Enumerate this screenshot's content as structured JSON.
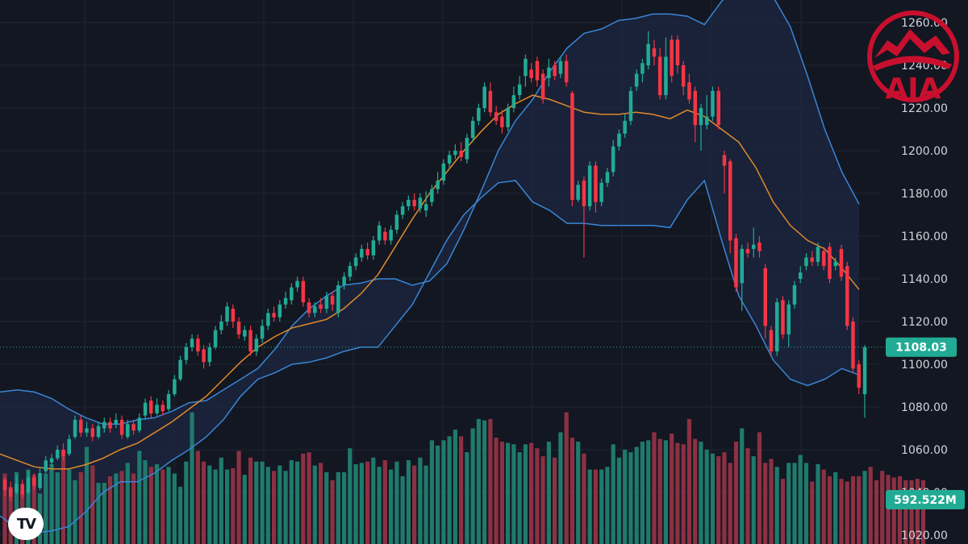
{
  "colors": {
    "background": "#131722",
    "grid": "#1f2433",
    "up": "#22ab94",
    "down": "#f23645",
    "up_volume": "#1f7a6c",
    "down_volume": "#8c3142",
    "band_line": "#3a86d6",
    "band_fill": "#1c2740",
    "ma_line": "#e08a2c",
    "last_price_tag": "#22ab94",
    "logo_red": "#c8102e"
  },
  "logo": {
    "text": "AIA",
    "icon": "aia-mountain-logo-icon"
  },
  "watermark": {
    "icon": "tradingview-logo-icon",
    "text": "TV"
  },
  "price_axis": {
    "ticks": [
      "1260.00",
      "1240.00",
      "1220.00",
      "1200.00",
      "1180.00",
      "1160.00",
      "1140.00",
      "1120.00",
      "1100.00",
      "1080.00",
      "1060.00",
      "1040.00",
      "1020.00"
    ]
  },
  "last_price": {
    "value": 1108.03,
    "label": "1108.03"
  },
  "volume_last": {
    "label": "592.522M"
  },
  "chart_data": {
    "type": "candlestick",
    "ylim": [
      1020,
      1265
    ],
    "grid": true,
    "candles": [
      [
        1046,
        1041,
        1047,
        1038
      ],
      [
        1042,
        1038,
        1045,
        1036
      ],
      [
        1040,
        1044,
        1048,
        1039
      ],
      [
        1044,
        1039,
        1046,
        1037
      ],
      [
        1040,
        1047,
        1050,
        1039
      ],
      [
        1047,
        1043,
        1049,
        1041
      ],
      [
        1042,
        1049,
        1052,
        1041
      ],
      [
        1050,
        1055,
        1057,
        1049
      ],
      [
        1054,
        1056,
        1058,
        1052
      ],
      [
        1056,
        1060,
        1062,
        1055
      ],
      [
        1060,
        1057,
        1063,
        1055
      ],
      [
        1058,
        1065,
        1067,
        1057
      ],
      [
        1066,
        1074,
        1076,
        1065
      ],
      [
        1074,
        1068,
        1076,
        1066
      ],
      [
        1068,
        1070,
        1073,
        1066
      ],
      [
        1070,
        1066,
        1072,
        1064
      ],
      [
        1066,
        1071,
        1073,
        1065
      ],
      [
        1070,
        1073,
        1075,
        1068
      ],
      [
        1073,
        1070,
        1075,
        1068
      ],
      [
        1072,
        1074,
        1077,
        1070
      ],
      [
        1074,
        1067,
        1076,
        1065
      ],
      [
        1066,
        1072,
        1074,
        1065
      ],
      [
        1072,
        1069,
        1074,
        1067
      ],
      [
        1069,
        1075,
        1077,
        1068
      ],
      [
        1076,
        1082,
        1084,
        1074
      ],
      [
        1083,
        1077,
        1085,
        1075
      ],
      [
        1077,
        1081,
        1084,
        1076
      ],
      [
        1081,
        1078,
        1083,
        1076
      ],
      [
        1079,
        1086,
        1088,
        1078
      ],
      [
        1086,
        1093,
        1095,
        1085
      ],
      [
        1093,
        1102,
        1104,
        1092
      ],
      [
        1102,
        1108,
        1110,
        1100
      ],
      [
        1108,
        1112,
        1114,
        1106
      ],
      [
        1112,
        1106,
        1114,
        1104
      ],
      [
        1107,
        1101,
        1109,
        1098
      ],
      [
        1101,
        1108,
        1110,
        1099
      ],
      [
        1108,
        1116,
        1118,
        1107
      ],
      [
        1116,
        1120,
        1123,
        1114
      ],
      [
        1120,
        1127,
        1129,
        1118
      ],
      [
        1126,
        1120,
        1128,
        1117
      ],
      [
        1120,
        1114,
        1122,
        1112
      ],
      [
        1113,
        1116,
        1118,
        1111
      ],
      [
        1116,
        1106,
        1118,
        1104
      ],
      [
        1106,
        1112,
        1114,
        1104
      ],
      [
        1112,
        1118,
        1121,
        1110
      ],
      [
        1118,
        1124,
        1126,
        1116
      ],
      [
        1124,
        1122,
        1127,
        1120
      ],
      [
        1122,
        1128,
        1130,
        1120
      ],
      [
        1128,
        1131,
        1134,
        1126
      ],
      [
        1130,
        1136,
        1138,
        1128
      ],
      [
        1136,
        1139,
        1141,
        1134
      ],
      [
        1139,
        1129,
        1141,
        1127
      ],
      [
        1129,
        1124,
        1131,
        1122
      ],
      [
        1124,
        1127,
        1129,
        1122
      ],
      [
        1128,
        1126,
        1131,
        1124
      ],
      [
        1126,
        1132,
        1134,
        1124
      ],
      [
        1132,
        1128,
        1134,
        1125
      ],
      [
        1124,
        1137,
        1139,
        1122
      ],
      [
        1137,
        1141,
        1143,
        1135
      ],
      [
        1141,
        1146,
        1148,
        1139
      ],
      [
        1146,
        1150,
        1152,
        1144
      ],
      [
        1150,
        1154,
        1156,
        1148
      ],
      [
        1154,
        1151,
        1157,
        1149
      ],
      [
        1151,
        1158,
        1160,
        1149
      ],
      [
        1158,
        1165,
        1167,
        1156
      ],
      [
        1162,
        1158,
        1164,
        1156
      ],
      [
        1158,
        1163,
        1165,
        1156
      ],
      [
        1163,
        1170,
        1172,
        1161
      ],
      [
        1170,
        1174,
        1176,
        1168
      ],
      [
        1174,
        1177,
        1179,
        1172
      ],
      [
        1177,
        1174,
        1180,
        1172
      ],
      [
        1173,
        1178,
        1180,
        1171
      ],
      [
        1172,
        1175,
        1181,
        1169
      ],
      [
        1176,
        1182,
        1184,
        1174
      ],
      [
        1182,
        1186,
        1190,
        1180
      ],
      [
        1186,
        1194,
        1196,
        1184
      ],
      [
        1194,
        1198,
        1200,
        1192
      ],
      [
        1198,
        1200,
        1203,
        1196
      ],
      [
        1200,
        1197,
        1204,
        1195
      ],
      [
        1196,
        1206,
        1208,
        1194
      ],
      [
        1206,
        1214,
        1216,
        1204
      ],
      [
        1214,
        1220,
        1222,
        1212
      ],
      [
        1220,
        1230,
        1232,
        1218
      ],
      [
        1228,
        1218,
        1232,
        1216
      ],
      [
        1218,
        1214,
        1221,
        1212
      ],
      [
        1216,
        1211,
        1219,
        1208
      ],
      [
        1211,
        1220,
        1222,
        1209
      ],
      [
        1220,
        1226,
        1230,
        1218
      ],
      [
        1226,
        1231,
        1235,
        1224
      ],
      [
        1235,
        1243,
        1245,
        1230
      ],
      [
        1238,
        1234,
        1241,
        1232
      ],
      [
        1242,
        1233,
        1244,
        1230
      ],
      [
        1236,
        1224,
        1238,
        1222
      ],
      [
        1234,
        1239,
        1243,
        1230
      ],
      [
        1240,
        1235,
        1242,
        1233
      ],
      [
        1236,
        1242,
        1244,
        1234
      ],
      [
        1242,
        1232,
        1245,
        1230
      ],
      [
        1227,
        1177,
        1228,
        1174
      ],
      [
        1177,
        1184,
        1186,
        1176
      ],
      [
        1186,
        1174,
        1188,
        1150
      ],
      [
        1174,
        1193,
        1195,
        1172
      ],
      [
        1193,
        1176,
        1195,
        1171
      ],
      [
        1176,
        1185,
        1187,
        1174
      ],
      [
        1185,
        1190,
        1192,
        1183
      ],
      [
        1190,
        1202,
        1205,
        1188
      ],
      [
        1202,
        1208,
        1210,
        1200
      ],
      [
        1208,
        1214,
        1217,
        1206
      ],
      [
        1214,
        1228,
        1230,
        1212
      ],
      [
        1230,
        1236,
        1238,
        1228
      ],
      [
        1236,
        1241,
        1243,
        1232
      ],
      [
        1240,
        1250,
        1256,
        1238
      ],
      [
        1248,
        1244,
        1252,
        1240
      ],
      [
        1244,
        1226,
        1248,
        1224
      ],
      [
        1226,
        1244,
        1253,
        1224
      ],
      [
        1252,
        1235,
        1254,
        1232
      ],
      [
        1252,
        1240,
        1254,
        1236
      ],
      [
        1240,
        1230,
        1242,
        1226
      ],
      [
        1232,
        1224,
        1236,
        1222
      ],
      [
        1228,
        1212,
        1230,
        1204
      ],
      [
        1212,
        1220,
        1222,
        1200
      ],
      [
        1212,
        1216,
        1226,
        1210
      ],
      [
        1216,
        1228,
        1230,
        1214
      ],
      [
        1228,
        1212,
        1230,
        1210
      ],
      [
        1198,
        1193,
        1200,
        1180
      ],
      [
        1195,
        1158,
        1196,
        1152
      ],
      [
        1159,
        1136,
        1161,
        1134
      ],
      [
        1138,
        1154,
        1156,
        1125
      ],
      [
        1154,
        1152,
        1157,
        1150
      ],
      [
        1154,
        1156,
        1164,
        1150
      ],
      [
        1157,
        1153,
        1160,
        1150
      ],
      [
        1145,
        1118,
        1147,
        1112
      ],
      [
        1116,
        1106,
        1118,
        1104
      ],
      [
        1106,
        1129,
        1131,
        1104
      ],
      [
        1130,
        1114,
        1132,
        1112
      ],
      [
        1114,
        1128,
        1130,
        1108
      ],
      [
        1128,
        1137,
        1139,
        1126
      ],
      [
        1140,
        1143,
        1146,
        1138
      ],
      [
        1146,
        1150,
        1152,
        1144
      ],
      [
        1150,
        1148,
        1153,
        1146
      ],
      [
        1148,
        1155,
        1157,
        1146
      ],
      [
        1153,
        1146,
        1155,
        1144
      ],
      [
        1155,
        1140,
        1157,
        1138
      ],
      [
        1146,
        1148,
        1150,
        1144
      ],
      [
        1154,
        1141,
        1156,
        1139
      ],
      [
        1146,
        1118,
        1148,
        1116
      ],
      [
        1120,
        1098,
        1122,
        1096
      ],
      [
        1100,
        1089,
        1102,
        1086
      ],
      [
        1086,
        1108,
        1109,
        1075
      ]
    ],
    "volume_pct": [
      0.53,
      0.43,
      0.54,
      0.4,
      0.56,
      0.52,
      0.38,
      0.53,
      0.6,
      0.54,
      0.7,
      0.56,
      0.48,
      0.54,
      0.73,
      0.59,
      0.46,
      0.46,
      0.51,
      0.53,
      0.55,
      0.61,
      0.53,
      0.7,
      0.63,
      0.58,
      0.6,
      0.56,
      0.58,
      0.53,
      0.43,
      0.62,
      0.99,
      0.7,
      0.62,
      0.59,
      0.56,
      0.65,
      0.56,
      0.57,
      0.7,
      0.52,
      0.65,
      0.62,
      0.62,
      0.58,
      0.55,
      0.59,
      0.55,
      0.63,
      0.62,
      0.68,
      0.69,
      0.59,
      0.61,
      0.54,
      0.48,
      0.54,
      0.54,
      0.72,
      0.6,
      0.61,
      0.62,
      0.65,
      0.58,
      0.63,
      0.56,
      0.62,
      0.51,
      0.63,
      0.59,
      0.65,
      0.59,
      0.78,
      0.74,
      0.78,
      0.81,
      0.86,
      0.81,
      0.69,
      0.87,
      0.94,
      0.93,
      0.94,
      0.8,
      0.77,
      0.76,
      0.75,
      0.69,
      0.75,
      0.76,
      0.72,
      0.66,
      0.77,
      0.65,
      0.84,
      0.99,
      0.8,
      0.77,
      0.68,
      0.56,
      0.56,
      0.56,
      0.58,
      0.75,
      0.65,
      0.71,
      0.69,
      0.73,
      0.77,
      0.78,
      0.84,
      0.79,
      0.78,
      0.83,
      0.76,
      0.75,
      0.94,
      0.79,
      0.77,
      0.71,
      0.68,
      0.66,
      0.69,
      0.61,
      0.77,
      0.87,
      0.72,
      0.66,
      0.84,
      0.61,
      0.64,
      0.58,
      0.49,
      0.61,
      0.61,
      0.67,
      0.61,
      0.47,
      0.6,
      0.56,
      0.51,
      0.54,
      0.49,
      0.47,
      0.51,
      0.51,
      0.55,
      0.58,
      0.48,
      0.55,
      0.52,
      0.5,
      0.51,
      0.48,
      0.48,
      0.49,
      0.48
    ],
    "bollinger_upper": [
      1087,
      1088,
      1087,
      1084,
      1079,
      1075,
      1072,
      1072,
      1074,
      1075,
      1078,
      1082,
      1083,
      1088,
      1093,
      1098,
      1107,
      1118,
      1126,
      1132,
      1137,
      1138,
      1140,
      1140,
      1137,
      1139,
      1147,
      1163,
      1181,
      1200,
      1214,
      1224,
      1237,
      1248,
      1255,
      1257,
      1261,
      1262,
      1264,
      1264,
      1263,
      1259,
      1270,
      1278,
      1278,
      1272,
      1258,
      1235,
      1210,
      1190,
      1175
    ],
    "bollinger_middle": [
      1058,
      1055,
      1052,
      1051,
      1051,
      1053,
      1056,
      1060,
      1063,
      1068,
      1073,
      1079,
      1085,
      1093,
      1101,
      1108,
      1113,
      1117,
      1119,
      1121,
      1126,
      1133,
      1142,
      1155,
      1168,
      1180,
      1190,
      1200,
      1209,
      1217,
      1222,
      1226,
      1224,
      1221,
      1218,
      1217,
      1217,
      1218,
      1217,
      1215,
      1219,
      1216,
      1210,
      1204,
      1192,
      1176,
      1165,
      1158,
      1154,
      1145,
      1135
    ],
    "bollinger_lower": [
      1029,
      1023,
      1021,
      1022,
      1024,
      1031,
      1040,
      1045,
      1045,
      1049,
      1055,
      1060,
      1066,
      1074,
      1085,
      1093,
      1096,
      1100,
      1101,
      1103,
      1106,
      1108,
      1108,
      1118,
      1128,
      1143,
      1158,
      1170,
      1178,
      1185,
      1186,
      1176,
      1172,
      1166,
      1166,
      1165,
      1165,
      1165,
      1165,
      1164,
      1177,
      1186,
      1158,
      1132,
      1118,
      1102,
      1093,
      1090,
      1093,
      1098,
      1095
    ]
  }
}
